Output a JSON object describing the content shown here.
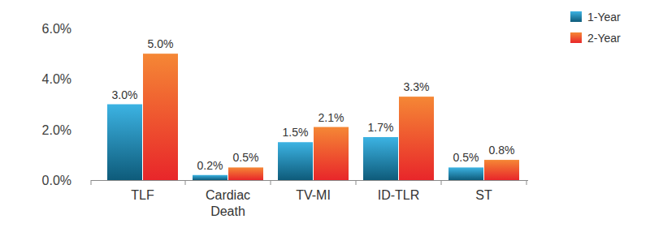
{
  "chart_data": {
    "type": "bar",
    "categories": [
      "TLF",
      "Cardiac Death",
      "TV-MI",
      "ID-TLR",
      "ST"
    ],
    "series": [
      {
        "name": "1-Year",
        "color": "#1aa6de",
        "values": [
          3.0,
          0.2,
          1.5,
          1.7,
          0.5
        ],
        "value_labels": [
          "3.0%",
          "0.2%",
          "1.5%",
          "1.7%",
          "0.5%"
        ]
      },
      {
        "name": "2-Year",
        "color": "#f47a1e",
        "values": [
          5.0,
          0.5,
          2.1,
          3.3,
          0.8
        ],
        "value_labels": [
          "5.0%",
          "0.5%",
          "2.1%",
          "3.3%",
          "0.8%"
        ]
      }
    ],
    "ylim": [
      0,
      6
    ],
    "yticks": [
      {
        "value": 0,
        "label": "0.0%"
      },
      {
        "value": 2,
        "label": "2.0%"
      },
      {
        "value": 4,
        "label": "4.0%"
      },
      {
        "value": 6,
        "label": "6.0%"
      }
    ],
    "grid": false,
    "legend": "top-right",
    "data_labels": true
  }
}
